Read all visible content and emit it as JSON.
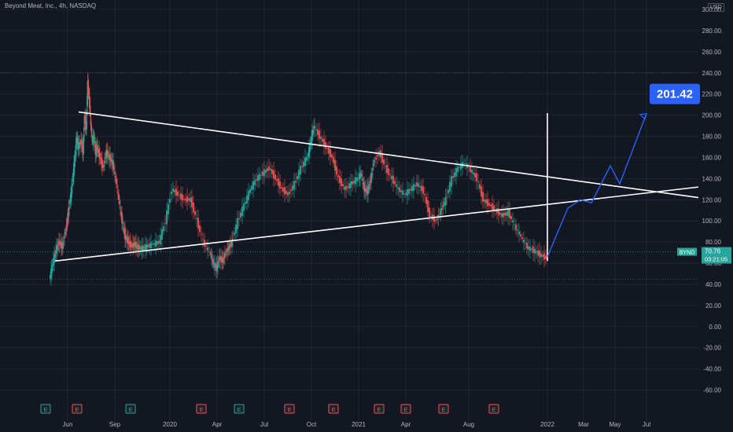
{
  "header": {
    "title": "Beyond Meat, Inc., 4h, NASDAQ",
    "currency": "USD"
  },
  "colors": {
    "background": "#131722",
    "grid": "#2a2e39",
    "axis_text": "#b2b5be",
    "bull": "#26a69a",
    "bear": "#ef5350",
    "trendline": "#ffffff",
    "projection": "#2962ff",
    "earnings_green": "#26a69a",
    "earnings_red": "#ef5350"
  },
  "chart_data": {
    "type": "line",
    "symbol": "BYND",
    "ylim": [
      -70,
      300
    ],
    "y_ticks": [
      "300.00",
      "280.00",
      "260.00",
      "240.00",
      "220.00",
      "200.00",
      "180.00",
      "160.00",
      "140.00",
      "120.00",
      "100.00",
      "80.00",
      "60.00",
      "40.00",
      "20.00",
      "0.00",
      "-20.00",
      "-40.00",
      "-60.00"
    ],
    "x_ticks": [
      "Jun",
      "Sep",
      "2020",
      "Apr",
      "Jul",
      "Oct",
      "2021",
      "Apr",
      "Aug",
      "2022",
      "Mar",
      "May",
      "Jul"
    ],
    "x_tick_pos": [
      0.5,
      3.5,
      7.0,
      10.0,
      13.0,
      16.0,
      19.0,
      22.0,
      26.0,
      31.0,
      33.3,
      35.3,
      37.3
    ],
    "xlim": [
      -0.8,
      40.6
    ],
    "price": {
      "x": [
        -0.6,
        -0.4,
        -0.2,
        0.0,
        0.2,
        0.4,
        0.5,
        0.6,
        0.8,
        1.0,
        1.1,
        1.2,
        1.4,
        1.5,
        1.6,
        1.7,
        1.8,
        1.9,
        2.0,
        2.1,
        2.2,
        2.3,
        2.4,
        2.6,
        2.8,
        3.0,
        3.2,
        3.4,
        3.6,
        3.8,
        4.0,
        4.2,
        4.4,
        4.6,
        4.8,
        5.0,
        5.3,
        5.6,
        6.0,
        6.4,
        6.8,
        7.2,
        7.6,
        8.0,
        8.4,
        8.8,
        9.2,
        9.6,
        9.8,
        10.0,
        10.2,
        10.4,
        10.6,
        10.8,
        11.0,
        11.4,
        11.8,
        12.2,
        12.6,
        13.0,
        13.4,
        13.8,
        14.2,
        14.6,
        15.0,
        15.4,
        15.8,
        16.0,
        16.2,
        16.6,
        17.0,
        17.4,
        17.8,
        18.2,
        18.6,
        19.0,
        19.2,
        19.4,
        19.6,
        19.8,
        20.0,
        20.4,
        20.8,
        21.2,
        21.6,
        22.0,
        22.4,
        22.8,
        23.2,
        23.6,
        24.0,
        24.3,
        24.6,
        25.0,
        25.4,
        25.8,
        26.2,
        26.6,
        27.0,
        27.4,
        27.8,
        28.2,
        28.6,
        29.0,
        29.4,
        29.8,
        30.2,
        30.6,
        31.0
      ],
      "y": [
        45,
        60,
        72,
        80,
        75,
        90,
        100,
        110,
        130,
        160,
        180,
        170,
        175,
        165,
        200,
        185,
        230,
        215,
        190,
        175,
        180,
        165,
        170,
        160,
        150,
        165,
        160,
        155,
        140,
        120,
        100,
        85,
        80,
        76,
        78,
        75,
        74,
        76,
        78,
        80,
        100,
        130,
        125,
        120,
        120,
        100,
        80,
        70,
        60,
        55,
        65,
        62,
        70,
        75,
        80,
        100,
        115,
        130,
        140,
        145,
        150,
        140,
        130,
        125,
        135,
        150,
        160,
        175,
        190,
        180,
        170,
        160,
        140,
        130,
        135,
        140,
        145,
        130,
        128,
        138,
        155,
        165,
        150,
        140,
        130,
        125,
        130,
        135,
        128,
        105,
        100,
        110,
        120,
        140,
        150,
        155,
        148,
        140,
        120,
        115,
        110,
        105,
        108,
        95,
        85,
        75,
        72,
        68,
        65
      ]
    },
    "triangle_upper": {
      "x": [
        1.2,
        40.6
      ],
      "y": [
        203,
        122
      ]
    },
    "triangle_lower": {
      "x": [
        -0.3,
        40.6
      ],
      "y": [
        62,
        132
      ]
    },
    "vertical_line": {
      "x": 31.0,
      "y": [
        62,
        202
      ]
    },
    "projection": {
      "x": [
        31.0,
        32.3,
        33.1,
        33.8,
        35.0,
        35.6,
        37.3
      ],
      "y": [
        66,
        112,
        120,
        117,
        152,
        135,
        201.42
      ]
    },
    "projection_label": "201.42",
    "last_price": 70.76,
    "price_tag": "70.76",
    "countdown": "03:21:05",
    "high_marker": 240,
    "low_marker": 45,
    "earnings": [
      {
        "x": -0.9,
        "type": "E",
        "color": "green"
      },
      {
        "x": 1.1,
        "type": "E",
        "color": "red"
      },
      {
        "x": 4.5,
        "type": "E",
        "color": "green"
      },
      {
        "x": 9.0,
        "type": "E",
        "color": "red"
      },
      {
        "x": 11.4,
        "type": "E",
        "color": "green"
      },
      {
        "x": 14.6,
        "type": "E",
        "color": "red"
      },
      {
        "x": 17.4,
        "type": "E",
        "color": "red"
      },
      {
        "x": 20.3,
        "type": "E",
        "color": "red"
      },
      {
        "x": 22.0,
        "type": "E",
        "color": "red"
      },
      {
        "x": 24.4,
        "type": "E",
        "color": "red"
      },
      {
        "x": 27.6,
        "type": "E",
        "color": "red"
      }
    ]
  }
}
